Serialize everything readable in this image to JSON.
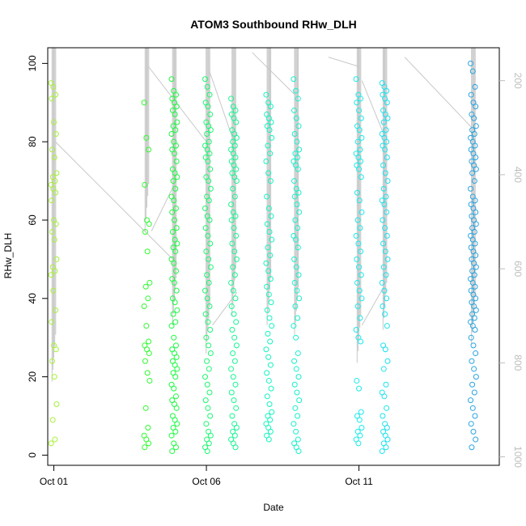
{
  "chart_data": {
    "type": "scatter",
    "title": "ATOM3 Southbound RHw_DLH",
    "xlabel": "Date",
    "ylabel": "RHw_DLH",
    "xlim": [
      -0.2,
      14.6
    ],
    "ylim": [
      -2.6,
      104
    ],
    "x_ticks": [
      {
        "value": 0,
        "label": "Oct 01"
      },
      {
        "value": 5,
        "label": "Oct 06"
      },
      {
        "value": 10,
        "label": "Oct 11"
      }
    ],
    "y_ticks": [
      0,
      20,
      40,
      60,
      80,
      100
    ],
    "y2_ticks": [
      200,
      400,
      600,
      800,
      1000
    ],
    "y2_range": [
      130,
      1018
    ],
    "grid": false,
    "point_color_scale": [
      "#a8f23a",
      "#1cfc2e",
      "#14f4c0",
      "#1ce8f0",
      "#2a9fe0"
    ],
    "flight_days": [
      {
        "day": 0.0,
        "rh": [
          95,
          94,
          92,
          91,
          85,
          82,
          78,
          76,
          72,
          71,
          70,
          69,
          68,
          67,
          65,
          60,
          59,
          57,
          55,
          50,
          48,
          47,
          46,
          42,
          37,
          34,
          28,
          27,
          24,
          20,
          13,
          9,
          4,
          3
        ]
      },
      {
        "day": 3.05,
        "rh": [
          90,
          81,
          78,
          69,
          60,
          59,
          57,
          52,
          44,
          43,
          40,
          38,
          33,
          29,
          28,
          27,
          26,
          24,
          21,
          19,
          12,
          7,
          5,
          4,
          3,
          2
        ]
      },
      {
        "day": 3.95,
        "rh": [
          96,
          93,
          92,
          91,
          90,
          89,
          88,
          87,
          85,
          84,
          83,
          82,
          80,
          79,
          78,
          77,
          75,
          73,
          72,
          71,
          70,
          68,
          66,
          65,
          63,
          62,
          60,
          58,
          57,
          55,
          54,
          53,
          52,
          50,
          49,
          47,
          45,
          44,
          42,
          40,
          39,
          37,
          36,
          34,
          33,
          30,
          28,
          27,
          26,
          25,
          24,
          23,
          22,
          21,
          20,
          18,
          17,
          15,
          14,
          13,
          12,
          10,
          9,
          8,
          7,
          6,
          5,
          3,
          2,
          1
        ]
      },
      {
        "day": 5.05,
        "rh": [
          96,
          94,
          92,
          90,
          89,
          87,
          85,
          84,
          83,
          82,
          80,
          79,
          78,
          77,
          76,
          75,
          73,
          71,
          70,
          68,
          66,
          65,
          63,
          61,
          60,
          58,
          56,
          54,
          52,
          50,
          48,
          46,
          44,
          42,
          40,
          38,
          36,
          34,
          32,
          30,
          28,
          26,
          24,
          22,
          20,
          18,
          16,
          14,
          12,
          10,
          8,
          6,
          5,
          4,
          3,
          2,
          1
        ]
      },
      {
        "day": 5.9,
        "rh": [
          91,
          89,
          88,
          87,
          86,
          85,
          83,
          82,
          81,
          80,
          79,
          78,
          77,
          76,
          75,
          74,
          73,
          72,
          71,
          70,
          68,
          66,
          64,
          62,
          61,
          60,
          58,
          56,
          54,
          52,
          50,
          48,
          46,
          44,
          42,
          40,
          38,
          36,
          34,
          32,
          30,
          28,
          26,
          24,
          22,
          20,
          18,
          16,
          14,
          12,
          10,
          8,
          7,
          6,
          5,
          4,
          3,
          2
        ]
      },
      {
        "day": 7.05,
        "rh": [
          92,
          90,
          89,
          87,
          86,
          85,
          84,
          83,
          81,
          79,
          77,
          75,
          72,
          70,
          66,
          63,
          61,
          59,
          57,
          55,
          53,
          51,
          49,
          47,
          45,
          43,
          41,
          39,
          37,
          35,
          33,
          31,
          29,
          27,
          25,
          23,
          21,
          19,
          17,
          15,
          13,
          11,
          10,
          9,
          8,
          7,
          6,
          5,
          4
        ]
      },
      {
        "day": 7.95,
        "rh": [
          96,
          93,
          91,
          88,
          86,
          84,
          82,
          80,
          78,
          77,
          76,
          75,
          74,
          73,
          70,
          68,
          67,
          66,
          64,
          62,
          60,
          58,
          56,
          55,
          53,
          50,
          48,
          46,
          44,
          42,
          40,
          38,
          35,
          33,
          30,
          26,
          24,
          22,
          20,
          18,
          16,
          14,
          12,
          10,
          8,
          6,
          4,
          3,
          2,
          1
        ]
      },
      {
        "day": 10.0,
        "rh": [
          96,
          92,
          91,
          90,
          88,
          86,
          84,
          83,
          81,
          80,
          78,
          77,
          76,
          75,
          74,
          73,
          71,
          67,
          65,
          62,
          60,
          58,
          56,
          54,
          52,
          50,
          48,
          46,
          44,
          42,
          40,
          38,
          35,
          32,
          30,
          29,
          19,
          17,
          11,
          10,
          9,
          7,
          6,
          5,
          4,
          3
        ]
      },
      {
        "day": 10.85,
        "rh": [
          95,
          94,
          93,
          92,
          91,
          90,
          88,
          87,
          86,
          85,
          83,
          82,
          81,
          80,
          79,
          78,
          76,
          74,
          72,
          70,
          68,
          66,
          65,
          64,
          62,
          60,
          58,
          56,
          54,
          52,
          50,
          48,
          46,
          44,
          42,
          40,
          38,
          36,
          33,
          28,
          27,
          24,
          22,
          18,
          16,
          15,
          12,
          10,
          8,
          7,
          6,
          5,
          4,
          3,
          2,
          1
        ]
      },
      {
        "day": 13.75,
        "rh": [
          100,
          98,
          94,
          92,
          90,
          89,
          87,
          86,
          84,
          83,
          82,
          81,
          80,
          79,
          78,
          77,
          76,
          75,
          74,
          73,
          72,
          70,
          68,
          66,
          65,
          64,
          63,
          62,
          61,
          60,
          59,
          58,
          57,
          56,
          55,
          54,
          53,
          52,
          51,
          50,
          49,
          48,
          47,
          46,
          45,
          44,
          43,
          42,
          41,
          40,
          39,
          38,
          37,
          36,
          35,
          34,
          33,
          32,
          30,
          28,
          26,
          24,
          22,
          20,
          18,
          16,
          14,
          12,
          10,
          8,
          6,
          4,
          2
        ]
      }
    ],
    "pressure_profiles": [
      {
        "day": 0.0,
        "p": [
          130,
          840
        ]
      },
      {
        "day": 3.05,
        "p": [
          130,
          520
        ]
      },
      {
        "day": 3.95,
        "p": [
          130,
          720
        ]
      },
      {
        "day": 5.05,
        "p": [
          130,
          780
        ]
      },
      {
        "day": 5.9,
        "p": [
          130,
          700
        ]
      },
      {
        "day": 7.05,
        "p": [
          130,
          720
        ]
      },
      {
        "day": 7.95,
        "p": [
          130,
          740
        ]
      },
      {
        "day": 10.0,
        "p": [
          130,
          800
        ]
      },
      {
        "day": 10.85,
        "p": [
          130,
          730
        ]
      },
      {
        "day": 13.75,
        "p": [
          130,
          760
        ]
      }
    ],
    "transit_lines": [
      {
        "from": [
          0.05,
          330
        ],
        "to": [
          3.9,
          580
        ]
      },
      {
        "from": [
          3.1,
          170
        ],
        "to": [
          5.0,
          330
        ]
      },
      {
        "from": [
          3.2,
          520
        ],
        "to": [
          3.95,
          420
        ]
      },
      {
        "from": [
          5.1,
          180
        ],
        "to": [
          5.9,
          330
        ]
      },
      {
        "from": [
          5.2,
          720
        ],
        "to": [
          6.0,
          650
        ]
      },
      {
        "from": [
          6.5,
          140
        ],
        "to": [
          7.9,
          230
        ]
      },
      {
        "from": [
          9.0,
          150
        ],
        "to": [
          10.0,
          170
        ]
      },
      {
        "from": [
          10.1,
          720
        ],
        "to": [
          10.8,
          640
        ]
      },
      {
        "from": [
          11.5,
          150
        ],
        "to": [
          13.7,
          300
        ]
      },
      {
        "from": [
          10.1,
          200
        ],
        "to": [
          10.85,
          320
        ]
      }
    ]
  }
}
